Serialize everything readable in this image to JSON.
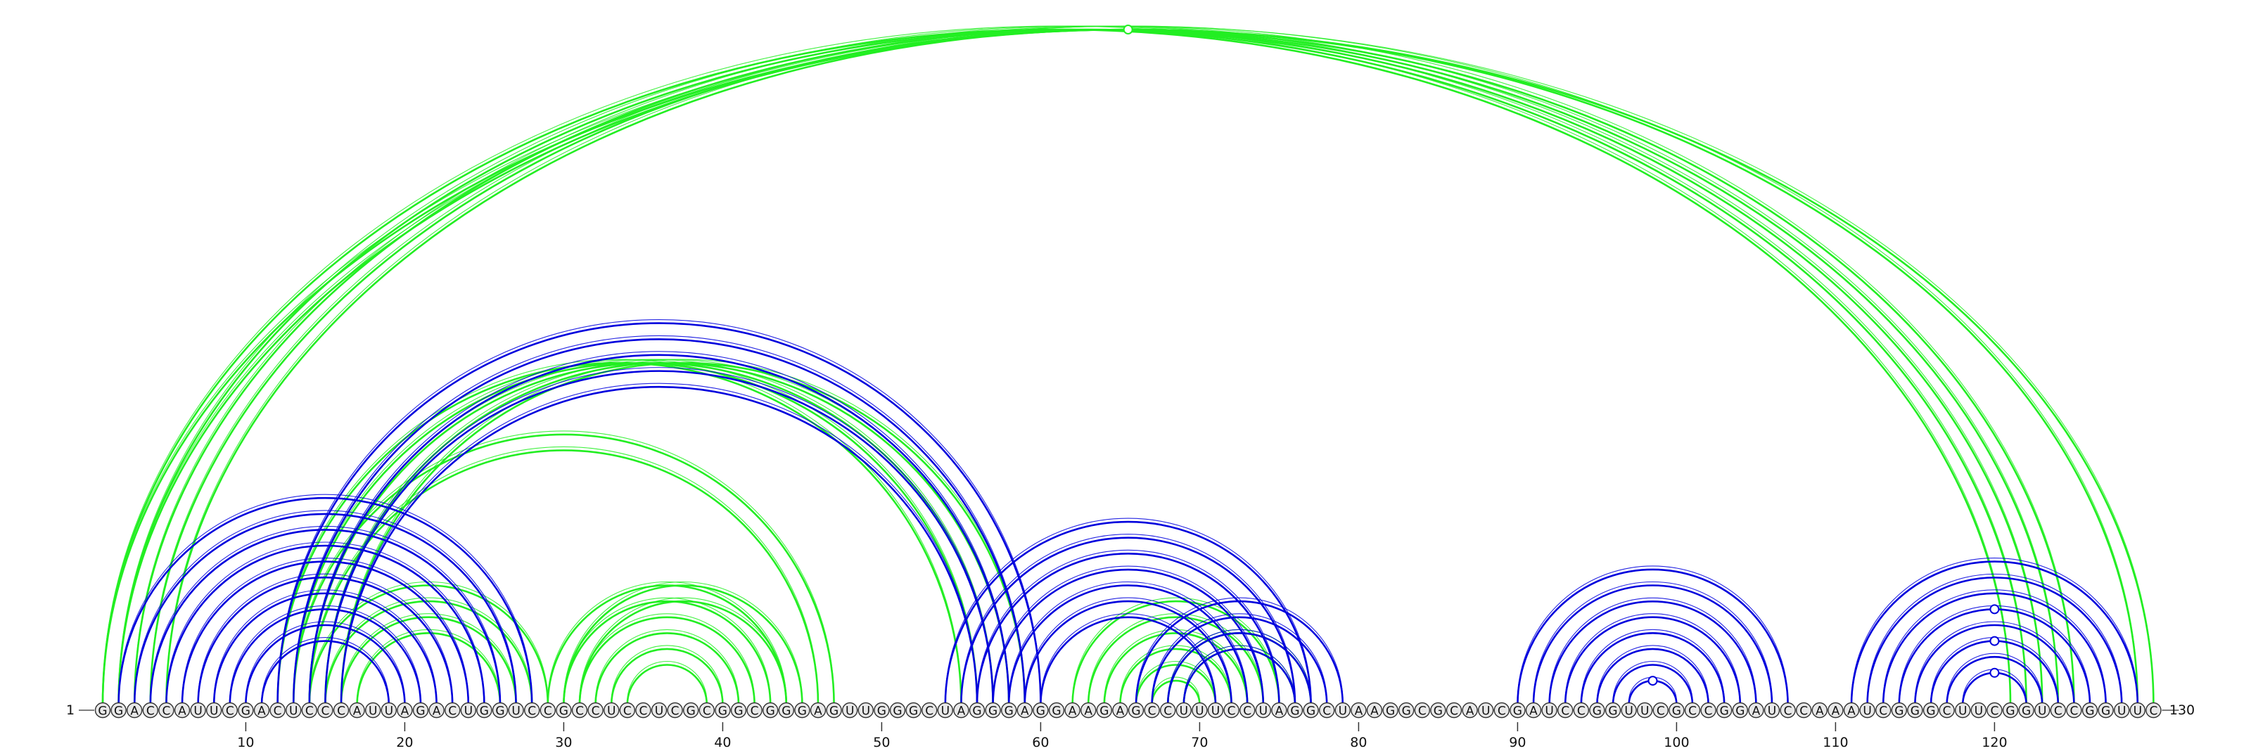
{
  "sequence": "GGACCAUUCGACUCCCAUUAGACUGGUCCGCCUCCUCGCGGCGGGAGUUGGGCUAGGGAGGAAGAGCCUUUCCUAGGCUAAGGCGCAUCGAUCCGGUUCGCCGGAUCCAAAUCGGGCUUCGGUCCGGUUC",
  "start_label": "1",
  "end_label": "130",
  "ticks": [
    {
      "pos": 10,
      "label": "10"
    },
    {
      "pos": 20,
      "label": "20"
    },
    {
      "pos": 30,
      "label": "30"
    },
    {
      "pos": 40,
      "label": "40"
    },
    {
      "pos": 50,
      "label": "50"
    },
    {
      "pos": 60,
      "label": "60"
    },
    {
      "pos": 70,
      "label": "70"
    },
    {
      "pos": 80,
      "label": "80"
    },
    {
      "pos": 90,
      "label": "90"
    },
    {
      "pos": 100,
      "label": "100"
    },
    {
      "pos": 110,
      "label": "110"
    },
    {
      "pos": 120,
      "label": "120"
    }
  ],
  "colors": {
    "blue": "#0000dd",
    "green": "#22ee22",
    "node_fill": "#e8e8e8",
    "node_stroke": "#333333",
    "text": "#111111"
  },
  "arcs": {
    "green": [
      [
        1,
        121
      ],
      [
        2,
        122
      ],
      [
        3,
        123
      ],
      [
        4,
        124
      ],
      [
        5,
        125
      ],
      [
        1,
        130
      ],
      [
        2,
        129
      ],
      [
        12,
        55
      ],
      [
        13,
        56
      ],
      [
        14,
        57
      ],
      [
        15,
        58
      ],
      [
        16,
        59
      ],
      [
        14,
        29
      ],
      [
        15,
        28
      ],
      [
        16,
        27
      ],
      [
        17,
        26
      ],
      [
        13,
        47
      ],
      [
        14,
        46
      ],
      [
        29,
        44
      ],
      [
        30,
        43
      ],
      [
        31,
        42
      ],
      [
        32,
        41
      ],
      [
        33,
        40
      ],
      [
        34,
        39
      ],
      [
        30,
        45
      ],
      [
        31,
        44
      ],
      [
        62,
        75
      ],
      [
        63,
        74
      ],
      [
        64,
        73
      ],
      [
        65,
        72
      ],
      [
        66,
        71
      ],
      [
        67,
        70
      ],
      [
        68,
        77
      ],
      [
        69,
        76
      ]
    ],
    "blue": [
      [
        2,
        28
      ],
      [
        3,
        27
      ],
      [
        4,
        26
      ],
      [
        5,
        25
      ],
      [
        6,
        24
      ],
      [
        7,
        23
      ],
      [
        8,
        22
      ],
      [
        9,
        21
      ],
      [
        10,
        20
      ],
      [
        11,
        19
      ],
      [
        12,
        60
      ],
      [
        13,
        59
      ],
      [
        14,
        58
      ],
      [
        15,
        57
      ],
      [
        16,
        56
      ],
      [
        54,
        77
      ],
      [
        55,
        76
      ],
      [
        56,
        75
      ],
      [
        57,
        74
      ],
      [
        58,
        73
      ],
      [
        59,
        72
      ],
      [
        60,
        71
      ],
      [
        66,
        79
      ],
      [
        67,
        78
      ],
      [
        68,
        77
      ],
      [
        69,
        76
      ],
      [
        90,
        107
      ],
      [
        91,
        106
      ],
      [
        92,
        105
      ],
      [
        93,
        104
      ],
      [
        94,
        103
      ],
      [
        95,
        102
      ],
      [
        96,
        101
      ],
      [
        97,
        100
      ],
      [
        111,
        129
      ],
      [
        112,
        128
      ],
      [
        113,
        127
      ],
      [
        114,
        126
      ],
      [
        115,
        125
      ],
      [
        116,
        124
      ],
      [
        117,
        123
      ],
      [
        118,
        122
      ]
    ]
  },
  "loop_markers": {
    "green": [
      [
        1,
        130
      ]
    ],
    "blue": [
      [
        97,
        100
      ],
      [
        118,
        122
      ],
      [
        116,
        124
      ],
      [
        114,
        126
      ]
    ]
  }
}
